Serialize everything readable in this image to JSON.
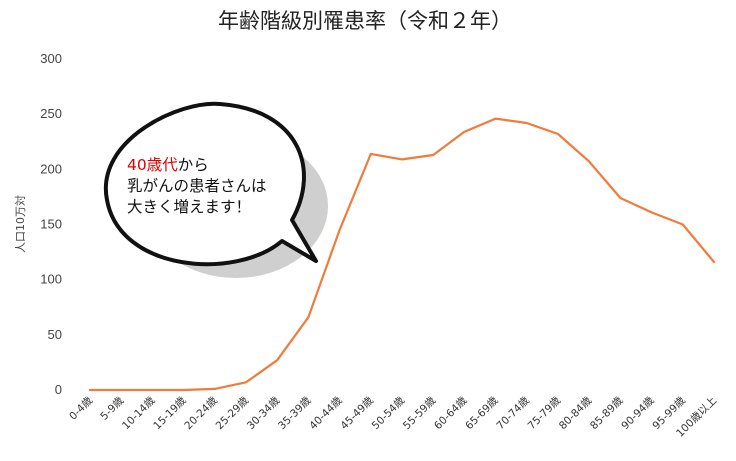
{
  "chart_data": {
    "type": "line",
    "title": "年齢階級別罹患率（令和２年）",
    "ylabel": "人口10万対",
    "xlabel": "",
    "ylim": [
      0,
      300
    ],
    "yticks": [
      "0",
      "50",
      "100",
      "150",
      "200",
      "250",
      "300"
    ],
    "grid": false,
    "categories": [
      "0-4歳",
      "5-9歳",
      "10-14歳",
      "15-19歳",
      "20-24歳",
      "25-29歳",
      "30-34歳",
      "35-39歳",
      "40-44歳",
      "45-49歳",
      "50-54歳",
      "55-59歳",
      "60-64歳",
      "65-69歳",
      "70-74歳",
      "75-79歳",
      "80-84歳",
      "85-89歳",
      "90-94歳",
      "95-99歳",
      "100歳以上"
    ],
    "series": [
      {
        "values": [
          0,
          0,
          0,
          0,
          1,
          7,
          27,
          66,
          145,
          214,
          209,
          213,
          234,
          246,
          242,
          232,
          207,
          174,
          161,
          150,
          116
        ]
      }
    ],
    "colors": {
      "line": "#ee7c3c",
      "highlight": "#dd0000"
    }
  },
  "annotation": {
    "highlight": "40歳代",
    "line1_rest": "から",
    "line2": "乳がんの患者さんは",
    "line3": "大きく増えます！"
  }
}
